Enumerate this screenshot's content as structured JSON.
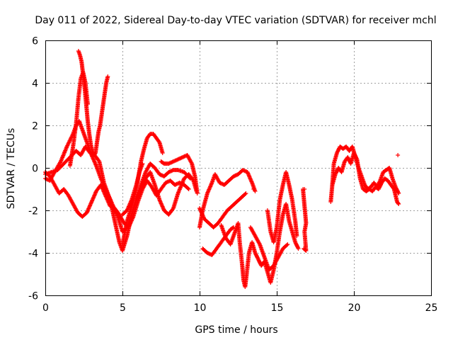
{
  "chart_data": {
    "type": "scatter",
    "title": "Day 011 of 2022, Sidereal Day-to-day VTEC variation (SDTVAR) for receiver mchl",
    "xlabel": "GPS time / hours",
    "ylabel": "SDTVAR / TECUs",
    "xlim": [
      0,
      25
    ],
    "ylim": [
      -6,
      6
    ],
    "xticks": [
      0,
      5,
      10,
      15,
      20,
      25
    ],
    "yticks": [
      -6,
      -4,
      -2,
      0,
      2,
      4,
      6
    ],
    "grid": true,
    "marker": "+",
    "series_color": "#ff0000",
    "traces": [
      [
        [
          0,
          -0.5
        ],
        [
          0.3,
          -0.6
        ],
        [
          0.6,
          -0.2
        ],
        [
          1.0,
          0.3
        ],
        [
          1.4,
          1.0
        ],
        [
          1.8,
          1.6
        ],
        [
          2.0,
          2.0
        ],
        [
          2.2,
          2.2
        ],
        [
          2.4,
          1.8
        ],
        [
          2.7,
          1.2
        ],
        [
          3.0,
          0.6
        ],
        [
          3.3,
          0.1
        ],
        [
          3.6,
          -0.5
        ],
        [
          3.9,
          -1.0
        ],
        [
          4.2,
          -1.5
        ],
        [
          4.5,
          -2.5
        ],
        [
          4.8,
          -3.5
        ],
        [
          5.0,
          -3.9
        ],
        [
          5.3,
          -3.2
        ],
        [
          5.6,
          -2.2
        ],
        [
          5.9,
          -1.5
        ],
        [
          6.2,
          -1.0
        ],
        [
          6.5,
          -0.5
        ],
        [
          6.8,
          -0.2
        ],
        [
          7.1,
          -0.8
        ],
        [
          7.4,
          -1.5
        ],
        [
          7.7,
          -2.0
        ],
        [
          8.0,
          -2.2
        ],
        [
          8.3,
          -1.9
        ],
        [
          8.6,
          -1.2
        ],
        [
          9.0,
          -0.5
        ],
        [
          9.3,
          -0.3
        ],
        [
          9.6,
          -0.6
        ],
        [
          9.8,
          -1.1
        ]
      ],
      [
        [
          0,
          -0.2
        ],
        [
          0.3,
          -0.4
        ],
        [
          0.6,
          -0.8
        ],
        [
          0.9,
          -1.2
        ],
        [
          1.2,
          -1.0
        ],
        [
          1.5,
          -1.3
        ],
        [
          1.8,
          -1.7
        ],
        [
          2.1,
          -2.1
        ],
        [
          2.4,
          -2.3
        ],
        [
          2.7,
          -2.1
        ],
        [
          3.0,
          -1.6
        ],
        [
          3.3,
          -1.1
        ],
        [
          3.6,
          -0.8
        ],
        [
          3.9,
          -1.3
        ],
        [
          4.2,
          -1.8
        ],
        [
          4.5,
          -1.9
        ],
        [
          4.8,
          -2.2
        ],
        [
          5.1,
          -2.6
        ],
        [
          5.4,
          -2.8
        ],
        [
          5.7,
          -2.3
        ],
        [
          6.0,
          -1.6
        ],
        [
          6.3,
          -1.0
        ],
        [
          6.6,
          -0.6
        ],
        [
          6.9,
          -0.9
        ],
        [
          7.2,
          -1.3
        ],
        [
          7.5,
          -1.0
        ],
        [
          7.8,
          -0.7
        ],
        [
          8.1,
          -0.6
        ],
        [
          8.4,
          -0.8
        ],
        [
          8.7,
          -0.7
        ],
        [
          9.0,
          -0.8
        ],
        [
          9.3,
          -1.0
        ]
      ],
      [
        [
          0,
          -0.3
        ],
        [
          0.4,
          -0.2
        ],
        [
          0.8,
          -0.1
        ],
        [
          1.2,
          0.2
        ],
        [
          1.6,
          0.5
        ],
        [
          2.0,
          0.8
        ],
        [
          2.3,
          0.6
        ],
        [
          2.6,
          1.0
        ],
        [
          2.9,
          0.7
        ],
        [
          3.2,
          0.6
        ],
        [
          3.5,
          0.3
        ],
        [
          3.8,
          -0.7
        ],
        [
          4.1,
          -1.3
        ],
        [
          4.4,
          -1.8
        ],
        [
          4.7,
          -2.3
        ],
        [
          5.0,
          -3.0
        ],
        [
          5.3,
          -2.8
        ],
        [
          5.6,
          -2.2
        ],
        [
          5.9,
          -1.5
        ],
        [
          6.2,
          -0.8
        ],
        [
          6.5,
          -0.2
        ],
        [
          6.8,
          0.2
        ],
        [
          7.1,
          0.0
        ],
        [
          7.4,
          -0.3
        ],
        [
          7.7,
          -0.4
        ],
        [
          8.0,
          -0.2
        ],
        [
          8.3,
          -0.1
        ],
        [
          8.6,
          -0.1
        ],
        [
          9.0,
          -0.2
        ],
        [
          9.4,
          -0.5
        ]
      ],
      [
        [
          2.15,
          5.5
        ],
        [
          2.25,
          5.3
        ],
        [
          2.35,
          5.0
        ],
        [
          2.45,
          4.4
        ],
        [
          2.55,
          3.8
        ],
        [
          2.65,
          3.0
        ],
        [
          2.75,
          2.2
        ],
        [
          2.85,
          1.6
        ],
        [
          2.95,
          1.1
        ],
        [
          3.05,
          0.8
        ],
        [
          3.15,
          0.6
        ],
        [
          3.25,
          0.7
        ],
        [
          3.35,
          1.2
        ],
        [
          3.45,
          1.7
        ],
        [
          3.55,
          2.0
        ],
        [
          3.65,
          2.5
        ],
        [
          3.75,
          3.0
        ],
        [
          3.85,
          3.5
        ],
        [
          3.95,
          4.0
        ],
        [
          4.05,
          4.3
        ]
      ],
      [
        [
          1.6,
          0.1
        ],
        [
          1.8,
          1.0
        ],
        [
          2.0,
          2.1
        ],
        [
          2.15,
          3.3
        ],
        [
          2.3,
          4.2
        ],
        [
          2.45,
          4.5
        ],
        [
          2.6,
          4.0
        ],
        [
          2.75,
          3.0
        ]
      ],
      [
        [
          5.0,
          -3.6
        ],
        [
          5.3,
          -2.5
        ],
        [
          5.6,
          -1.8
        ],
        [
          5.9,
          -1.0
        ],
        [
          6.2,
          0.3
        ],
        [
          6.4,
          0.9
        ],
        [
          6.6,
          1.4
        ],
        [
          6.8,
          1.6
        ],
        [
          7.0,
          1.6
        ],
        [
          7.2,
          1.4
        ],
        [
          7.4,
          1.2
        ],
        [
          7.6,
          0.7
        ]
      ],
      [
        [
          5.0,
          -2.2
        ],
        [
          5.3,
          -2.0
        ],
        [
          5.6,
          -1.5
        ],
        [
          5.9,
          -0.8
        ],
        [
          6.1,
          -0.2
        ],
        [
          6.3,
          0.2
        ]
      ],
      [
        [
          7.5,
          0.3
        ],
        [
          7.7,
          0.2
        ],
        [
          8.0,
          0.2
        ],
        [
          8.3,
          0.3
        ],
        [
          8.6,
          0.4
        ],
        [
          8.9,
          0.5
        ],
        [
          9.2,
          0.6
        ],
        [
          9.5,
          0.2
        ],
        [
          9.7,
          -0.4
        ],
        [
          9.85,
          -1.2
        ]
      ],
      [
        [
          10.0,
          -2.8
        ],
        [
          10.2,
          -2.0
        ],
        [
          10.5,
          -1.2
        ],
        [
          10.8,
          -0.7
        ],
        [
          11.0,
          -0.3
        ],
        [
          11.3,
          -0.7
        ],
        [
          11.6,
          -0.8
        ],
        [
          11.9,
          -0.6
        ],
        [
          12.2,
          -0.4
        ],
        [
          12.5,
          -0.3
        ],
        [
          12.8,
          -0.1
        ],
        [
          13.1,
          -0.2
        ],
        [
          13.4,
          -0.7
        ],
        [
          13.6,
          -1.1
        ]
      ],
      [
        [
          10.0,
          -1.9
        ],
        [
          10.3,
          -2.4
        ],
        [
          10.6,
          -2.6
        ],
        [
          10.9,
          -2.8
        ],
        [
          11.2,
          -2.6
        ],
        [
          11.5,
          -2.3
        ],
        [
          11.8,
          -2.0
        ],
        [
          12.1,
          -1.8
        ],
        [
          12.4,
          -1.6
        ],
        [
          12.7,
          -1.4
        ],
        [
          13.0,
          -1.2
        ]
      ],
      [
        [
          10.2,
          -3.8
        ],
        [
          10.5,
          -4.0
        ],
        [
          10.8,
          -4.1
        ],
        [
          11.1,
          -3.8
        ],
        [
          11.4,
          -3.5
        ],
        [
          11.7,
          -3.2
        ],
        [
          12.0,
          -2.9
        ],
        [
          12.2,
          -2.8
        ]
      ],
      [
        [
          11.4,
          -2.7
        ],
        [
          11.7,
          -3.3
        ],
        [
          12.0,
          -3.6
        ],
        [
          12.3,
          -3.0
        ],
        [
          12.5,
          -2.6
        ],
        [
          12.6,
          -3.5
        ],
        [
          12.75,
          -4.5
        ],
        [
          12.85,
          -5.3
        ],
        [
          12.95,
          -5.6
        ],
        [
          13.05,
          -5.0
        ],
        [
          13.2,
          -4.0
        ],
        [
          13.4,
          -3.5
        ],
        [
          13.6,
          -4.0
        ],
        [
          13.8,
          -4.3
        ],
        [
          14.0,
          -4.6
        ],
        [
          14.2,
          -4.4
        ],
        [
          14.4,
          -4.9
        ],
        [
          14.6,
          -5.4
        ],
        [
          14.8,
          -4.8
        ],
        [
          15.0,
          -4.0
        ],
        [
          15.2,
          -3.0
        ],
        [
          15.4,
          -2.2
        ],
        [
          15.6,
          -1.7
        ],
        [
          15.8,
          -2.5
        ],
        [
          16.0,
          -3.0
        ],
        [
          16.2,
          -3.5
        ],
        [
          16.4,
          -3.8
        ]
      ],
      [
        [
          13.3,
          -2.8
        ],
        [
          13.6,
          -3.2
        ],
        [
          13.9,
          -3.6
        ],
        [
          14.2,
          -4.2
        ],
        [
          14.5,
          -4.8
        ],
        [
          14.8,
          -4.6
        ],
        [
          15.1,
          -4.2
        ],
        [
          15.4,
          -3.8
        ],
        [
          15.7,
          -3.6
        ]
      ],
      [
        [
          14.4,
          -2.0
        ],
        [
          14.6,
          -3.0
        ],
        [
          14.8,
          -3.5
        ],
        [
          15.0,
          -2.8
        ],
        [
          15.2,
          -1.5
        ],
        [
          15.4,
          -0.8
        ],
        [
          15.6,
          -0.2
        ],
        [
          15.8,
          -0.8
        ],
        [
          16.0,
          -1.5
        ],
        [
          16.2,
          -2.5
        ],
        [
          16.3,
          -3.2
        ]
      ],
      [
        [
          16.7,
          -1.0
        ],
        [
          16.8,
          -1.8
        ],
        [
          16.9,
          -2.6
        ],
        [
          16.8,
          -3.0
        ],
        [
          16.9,
          -3.9
        ],
        [
          16.75,
          -3.8
        ]
      ],
      [
        [
          18.5,
          -1.6
        ],
        [
          18.6,
          -0.8
        ],
        [
          18.7,
          0.2
        ],
        [
          18.9,
          0.7
        ],
        [
          19.1,
          1.0
        ],
        [
          19.3,
          0.9
        ],
        [
          19.5,
          1.0
        ],
        [
          19.7,
          0.8
        ],
        [
          19.9,
          1.0
        ],
        [
          20.1,
          0.5
        ],
        [
          20.3,
          0.0
        ],
        [
          20.5,
          -0.4
        ],
        [
          20.7,
          -0.8
        ],
        [
          20.9,
          -1.0
        ],
        [
          21.1,
          -0.9
        ],
        [
          21.3,
          -0.7
        ],
        [
          21.5,
          -0.9
        ],
        [
          21.7,
          -0.6
        ],
        [
          21.9,
          -0.2
        ],
        [
          22.1,
          -0.1
        ],
        [
          22.3,
          0.0
        ],
        [
          22.5,
          -0.5
        ],
        [
          22.7,
          -0.9
        ],
        [
          22.9,
          -1.2
        ]
      ],
      [
        [
          18.6,
          -0.8
        ],
        [
          18.8,
          -0.3
        ],
        [
          19.0,
          0.0
        ],
        [
          19.2,
          -0.2
        ],
        [
          19.4,
          0.3
        ],
        [
          19.6,
          0.5
        ],
        [
          19.8,
          0.2
        ],
        [
          20.0,
          0.7
        ],
        [
          20.2,
          0.4
        ],
        [
          20.4,
          -0.5
        ],
        [
          20.6,
          -1.0
        ],
        [
          20.8,
          -1.1
        ],
        [
          21.0,
          -1.0
        ],
        [
          21.2,
          -1.1
        ],
        [
          21.4,
          -0.9
        ],
        [
          21.6,
          -1.0
        ],
        [
          21.8,
          -0.7
        ],
        [
          22.0,
          -0.5
        ],
        [
          22.2,
          -0.6
        ],
        [
          22.4,
          -0.8
        ],
        [
          22.6,
          -1.0
        ],
        [
          22.8,
          -1.6
        ],
        [
          22.9,
          -1.7
        ]
      ]
    ],
    "isolated": [
      [
        13.5,
        -1.0
      ],
      [
        22.85,
        0.6
      ],
      [
        16.8,
        -1.0
      ]
    ]
  }
}
